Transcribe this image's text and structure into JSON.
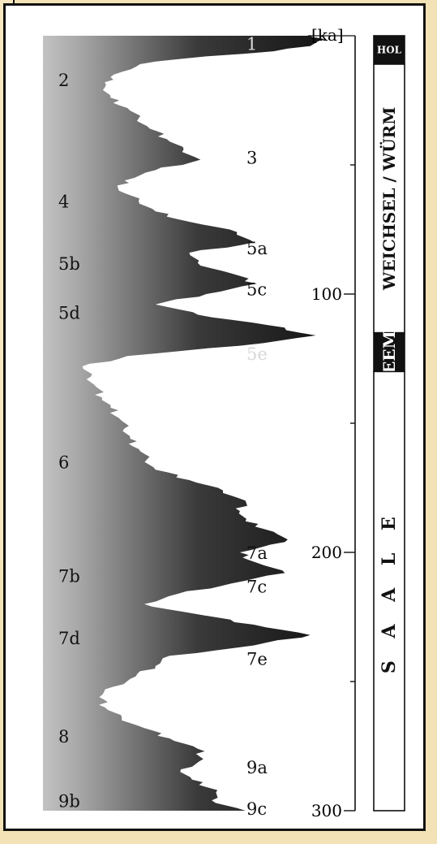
{
  "chart_data": {
    "type": "area",
    "title": "",
    "axis_unit": "[ka]",
    "y_axis": {
      "min": 0,
      "max": 300,
      "ticks": [
        100,
        200,
        300
      ],
      "minor_ticks": [
        50,
        150,
        250
      ]
    },
    "series": [
      {
        "ka": [
          0,
          1,
          2,
          4,
          6,
          8,
          10,
          12,
          14,
          16,
          18,
          20,
          24,
          28,
          32,
          36,
          40,
          44,
          48,
          52,
          56,
          60,
          64,
          68,
          72,
          76,
          80,
          84,
          88,
          92,
          96,
          100,
          104,
          108,
          112,
          116,
          120,
          124,
          128,
          132,
          136,
          140,
          144,
          148,
          152,
          156,
          160,
          164,
          168,
          172,
          176,
          180,
          184,
          188,
          192,
          196,
          200,
          204,
          208,
          212,
          216,
          220,
          224,
          228,
          232,
          236,
          240,
          244,
          248,
          252,
          256,
          260,
          264,
          268,
          272,
          276,
          280,
          284,
          288,
          292,
          296,
          300
        ],
        "value": [
          0.95,
          0.99,
          0.98,
          0.95,
          0.82,
          0.58,
          0.4,
          0.33,
          0.28,
          0.24,
          0.22,
          0.22,
          0.24,
          0.3,
          0.34,
          0.38,
          0.44,
          0.5,
          0.56,
          0.4,
          0.29,
          0.27,
          0.34,
          0.4,
          0.52,
          0.69,
          0.75,
          0.52,
          0.55,
          0.67,
          0.76,
          0.58,
          0.4,
          0.55,
          0.8,
          0.97,
          0.7,
          0.3,
          0.14,
          0.17,
          0.19,
          0.21,
          0.24,
          0.27,
          0.29,
          0.31,
          0.34,
          0.37,
          0.4,
          0.52,
          0.64,
          0.72,
          0.7,
          0.72,
          0.82,
          0.86,
          0.7,
          0.76,
          0.86,
          0.67,
          0.48,
          0.36,
          0.55,
          0.75,
          0.95,
          0.75,
          0.45,
          0.4,
          0.33,
          0.25,
          0.2,
          0.22,
          0.28,
          0.36,
          0.45,
          0.55,
          0.57,
          0.49,
          0.53,
          0.62,
          0.6,
          0.72
        ]
      }
    ],
    "stage_labels": [
      {
        "text": "1",
        "ka": 3,
        "side": "right",
        "shade": "light"
      },
      {
        "text": "2",
        "ka": 17,
        "side": "left"
      },
      {
        "text": "3",
        "ka": 47,
        "side": "right"
      },
      {
        "text": "4",
        "ka": 64,
        "side": "left"
      },
      {
        "text": "5a",
        "ka": 82,
        "side": "right"
      },
      {
        "text": "5b",
        "ka": 88,
        "side": "left"
      },
      {
        "text": "5c",
        "ka": 98,
        "side": "right"
      },
      {
        "text": "5d",
        "ka": 107,
        "side": "left"
      },
      {
        "text": "5e",
        "ka": 123,
        "side": "right",
        "shade": "light"
      },
      {
        "text": "6",
        "ka": 165,
        "side": "left"
      },
      {
        "text": "7a",
        "ka": 200,
        "side": "right"
      },
      {
        "text": "7b",
        "ka": 209,
        "side": "left"
      },
      {
        "text": "7c",
        "ka": 213,
        "side": "right"
      },
      {
        "text": "7d",
        "ka": 233,
        "side": "left"
      },
      {
        "text": "7e",
        "ka": 241,
        "side": "right"
      },
      {
        "text": "8",
        "ka": 271,
        "side": "left"
      },
      {
        "text": "9a",
        "ka": 283,
        "side": "right"
      },
      {
        "text": "9b",
        "ka": 296,
        "side": "left"
      },
      {
        "text": "9c",
        "ka": 299,
        "side": "right"
      }
    ],
    "periods": [
      {
        "text": "HOL",
        "from": 0,
        "to": 11,
        "style": "dark"
      },
      {
        "text": "WEICHSEL / WÜRM",
        "from": 11,
        "to": 115,
        "style": "light"
      },
      {
        "text": "EEM",
        "from": 115,
        "to": 130,
        "style": "dark"
      },
      {
        "text": "S  A  A  L  E",
        "from": 130,
        "to": 300,
        "style": "light"
      }
    ],
    "colors": {
      "fill_light": "#c2c2c2",
      "fill_dark": "#1e1e1e",
      "background": "#f3e2b6"
    }
  }
}
